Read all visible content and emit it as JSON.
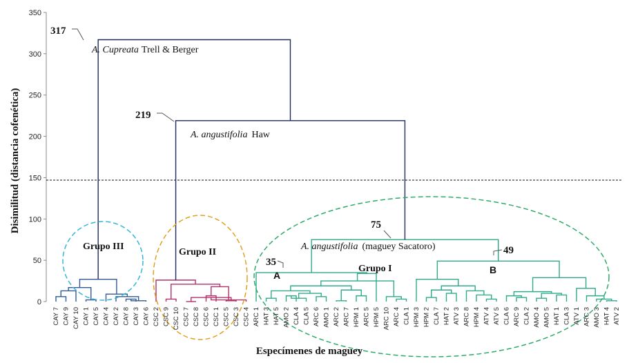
{
  "chart_data": {
    "type": "dendrogram",
    "ylabel": "Disimilitud (distancia cofenética)",
    "xlabel": "Especímenes de maguey",
    "ylim": [
      0,
      350
    ],
    "yticks": [
      0,
      50,
      100,
      150,
      200,
      250,
      300,
      350
    ],
    "cutoff_line": 147,
    "colors": {
      "blue": "#2f5a96",
      "magenta": "#b0306a",
      "green": "#2eaa8a",
      "root": "#1e2a5a",
      "cyan_ellipse": "#35b6d8",
      "orange_ellipse": "#e0a020",
      "green_ellipse": "#2eaa6a"
    },
    "leaves": [
      "CAY 7",
      "CAY 9",
      "CAY 10",
      "CAY 1",
      "CAY 5",
      "CAY 4",
      "CAY 2",
      "CAY 8",
      "CAY 3",
      "CAY 6",
      "CSC 2",
      "CSC 9",
      "CSC 10",
      "CSC 7",
      "CSC 8",
      "CSC 6",
      "CSC 1",
      "CSC 5",
      "CSC 3",
      "CSC 4",
      "ARC 1",
      "HAT 3",
      "HAT 5",
      "AMO 2",
      "CLA 4",
      "CLA 5",
      "ARC 6",
      "AMO 1",
      "ARC 2",
      "ARC 7",
      "HPM 1",
      "ARC 5",
      "HPM 5",
      "ARC 10",
      "ARC 4",
      "CLA 1",
      "HPM 3",
      "HPM 2",
      "CLA 7",
      "HAT 2",
      "ATV 3",
      "ARC 8",
      "HPM 4",
      "ATV 4",
      "ATV 5",
      "CLA 6",
      "ARC 9",
      "CLA 2",
      "AMO 4",
      "AMO 5",
      "HAT 1",
      "CLA 3",
      "ATV 1",
      "ARC 3",
      "AMO 3",
      "HAT 4",
      "ATV 2"
    ],
    "merges": [
      {
        "left": "CAY 7",
        "right": "CAY 9",
        "height": 6
      },
      {
        "left": "CAY 10",
        "right": "m0",
        "height": 13
      },
      {
        "left": "CAY 1",
        "right": "CAY 5",
        "height": 2
      },
      {
        "left": "m1",
        "right": "m2",
        "height": 17
      },
      {
        "left": "CAY 8",
        "right": "CAY 3",
        "height": 3
      },
      {
        "left": "m4",
        "right": "CAY 6",
        "height": 1
      },
      {
        "left": "CAY 2",
        "right": "m5",
        "height": 6
      },
      {
        "left": "CAY 4",
        "right": "m6",
        "height": 9
      },
      {
        "left": "m3",
        "right": "m7",
        "height": 27
      },
      {
        "left": "CSC 9",
        "right": "CSC 10",
        "height": 3
      },
      {
        "left": "CSC 5",
        "right": "CSC 3",
        "height": 1
      },
      {
        "left": "CSC 6",
        "right": "CSC 1",
        "height": 7
      },
      {
        "left": "CSC 7",
        "right": "CSC 8",
        "height": 0
      },
      {
        "left": "m12",
        "right": "m10",
        "height": 5
      },
      {
        "left": "m13",
        "right": "CSC 4",
        "height": 2
      },
      {
        "left": "m11",
        "right": "m14",
        "height": 18
      },
      {
        "left": "m9",
        "right": "m15",
        "height": 21
      },
      {
        "left": "CSC 2",
        "right": "m16",
        "height": 26
      },
      {
        "left": "HAT 3",
        "right": "HAT 5",
        "height": 4
      },
      {
        "left": "AMO 2",
        "right": "CLA 4",
        "height": 7
      },
      {
        "left": "m19",
        "right": "CLA 5",
        "height": 4
      },
      {
        "left": "ARC 6",
        "right": "AMO 1",
        "height": 6
      },
      {
        "left": "m20",
        "right": "m21",
        "height": 10
      },
      {
        "left": "m18",
        "right": "m22",
        "height": 13
      },
      {
        "left": "ARC 2",
        "right": "ARC 7",
        "height": 1
      },
      {
        "left": "HPM 1",
        "right": "ARC 5",
        "height": 7
      },
      {
        "left": "m24",
        "right": "m25",
        "height": 14
      },
      {
        "left": "m23",
        "right": "m26",
        "height": 19
      },
      {
        "left": "ARC 4",
        "right": "CLA 1",
        "height": 3
      },
      {
        "left": "ARC 10",
        "right": "m28",
        "height": 6
      },
      {
        "left": "m27",
        "right": "m29",
        "height": 25
      },
      {
        "left": "m30",
        "right": "HPM 5",
        "height": 34
      },
      {
        "left": "ARC 1",
        "right": "m31",
        "height": 35
      },
      {
        "left": "HPM 2",
        "right": "CLA 7",
        "height": 5
      },
      {
        "left": "HAT 2",
        "right": "ATV 3",
        "height": 10
      },
      {
        "left": "m33",
        "right": "m34",
        "height": 14
      },
      {
        "left": "ATV 4",
        "right": "ATV 5",
        "height": 3
      },
      {
        "left": "HPM 4",
        "right": "m36",
        "height": 8
      },
      {
        "left": "ARC 8",
        "right": "m37",
        "height": 13
      },
      {
        "left": "m35",
        "right": "m38",
        "height": 19
      },
      {
        "left": "HPM 3",
        "right": "m39",
        "height": 27
      },
      {
        "left": "ARC 9",
        "right": "CLA 2",
        "height": 5
      },
      {
        "left": "CLA 6",
        "right": "m41",
        "height": 7
      },
      {
        "left": "AMO 4",
        "right": "AMO 5",
        "height": 4
      },
      {
        "left": "HAT 1",
        "right": "CLA 3",
        "height": 8
      },
      {
        "left": "m43",
        "right": "m44",
        "height": 10
      },
      {
        "left": "m42",
        "right": "m45",
        "height": 12
      },
      {
        "left": "HAT 4",
        "right": "ATV 2",
        "height": 1
      },
      {
        "left": "AMO 3",
        "right": "m47",
        "height": 3
      },
      {
        "left": "ARC 3",
        "right": "m48",
        "height": 7
      },
      {
        "left": "ATV 1",
        "right": "m49",
        "height": 16
      },
      {
        "left": "m46",
        "right": "m50",
        "height": 29
      },
      {
        "left": "m40",
        "right": "m51",
        "height": 49
      },
      {
        "left": "m32",
        "right": "m52",
        "height": 75
      },
      {
        "left": "m17",
        "right": "m53",
        "height": 219
      },
      {
        "left": "m8",
        "right": "m54",
        "height": 317
      }
    ],
    "annotations": {
      "node317": "317",
      "node219": "219",
      "node75": "75",
      "node49": "49",
      "node35": "35",
      "cupreata_genus": "A. Cupreata",
      "cupreata_author": "Trell & Berger",
      "angustifolia_genus": "A. angustifolia",
      "angustifolia_author": "Haw",
      "sacatoro_genus": "A. angustifolia",
      "sacatoro_common": "(maguey Sacatoro)",
      "subcluster_a": "A",
      "subcluster_b": "B"
    },
    "groups": [
      {
        "label": "Grupo III",
        "color": "#35b6d8"
      },
      {
        "label": "Grupo II",
        "color": "#e0a020"
      },
      {
        "label": "Grupo I",
        "color": "#2eaa6a"
      }
    ]
  }
}
